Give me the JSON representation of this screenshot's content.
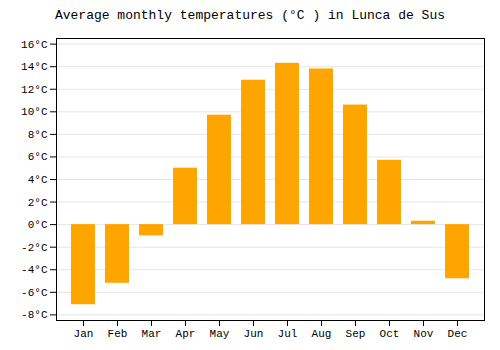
{
  "chart_data": {
    "type": "bar",
    "title": "Average monthly temperatures (°C ) in Lunca de Sus",
    "categories": [
      "Jan",
      "Feb",
      "Mar",
      "Apr",
      "May",
      "Jun",
      "Jul",
      "Aug",
      "Sep",
      "Oct",
      "Nov",
      "Dec"
    ],
    "values": [
      -7.1,
      -5.2,
      -1.0,
      5.0,
      9.7,
      12.8,
      14.3,
      13.8,
      10.6,
      5.7,
      0.3,
      -4.8
    ],
    "color": "#FFA500",
    "ylim": [
      -8.5,
      16.5
    ],
    "yticks": [
      {
        "value": -8,
        "label": "-8°C"
      },
      {
        "value": -6,
        "label": "-6°C"
      },
      {
        "value": -4,
        "label": "-4°C"
      },
      {
        "value": -2,
        "label": "-2°C"
      },
      {
        "value": 0,
        "label": "0°C"
      },
      {
        "value": 2,
        "label": "2°C"
      },
      {
        "value": 4,
        "label": "4°C"
      },
      {
        "value": 6,
        "label": "6°C"
      },
      {
        "value": 8,
        "label": "8°C"
      },
      {
        "value": 10,
        "label": "10°C"
      },
      {
        "value": 12,
        "label": "12°C"
      },
      {
        "value": 14,
        "label": "14°C"
      },
      {
        "value": 16,
        "label": "16°C"
      }
    ],
    "grid": true
  }
}
